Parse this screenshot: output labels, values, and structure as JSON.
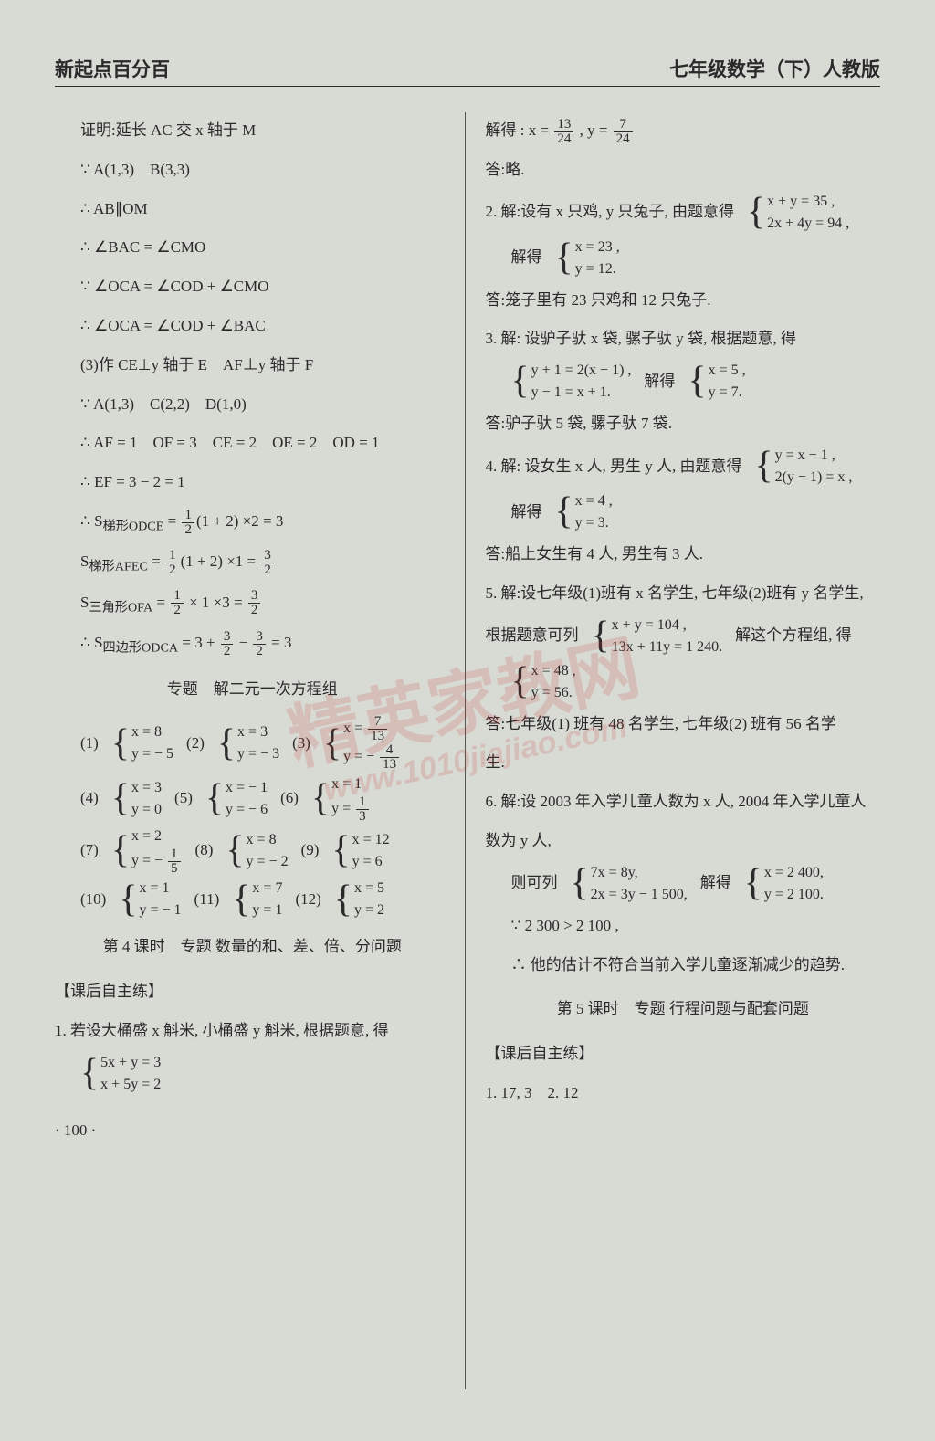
{
  "header": {
    "left": "新起点百分百",
    "right": "七年级数学（下）人教版"
  },
  "watermark": {
    "main": "精英家教网",
    "sub": "www.1010jiajiao.com"
  },
  "page_number": "· 100 ·",
  "left_col": {
    "l01": "证明:延长 AC 交 x 轴于 M",
    "l02": "∵ A(1,3)　B(3,3)",
    "l03": "∴ AB∥OM",
    "l04": "∴ ∠BAC = ∠CMO",
    "l05": "∵ ∠OCA = ∠COD + ∠CMO",
    "l06": "∴ ∠OCA = ∠COD + ∠BAC",
    "l07": "(3)作 CE⊥y 轴于 E　AF⊥y 轴于 F",
    "l08": "∵ A(1,3)　C(2,2)　D(1,0)",
    "l09": "∴ AF = 1　OF = 3　CE = 2　OE = 2　OD = 1",
    "l10": "∴ EF = 3 − 2 = 1",
    "l11a": "∴ S",
    "l11b": "梯形ODCE",
    "l11c": " = ",
    "l11n": "1",
    "l11d": "2",
    "l11e": "(1 + 2) ×2 = 3",
    "l12a": "S",
    "l12b": "梯形AFEC",
    "l12c": " = ",
    "l12n": "1",
    "l12d": "2",
    "l12e": "(1 + 2) ×1 = ",
    "l12n2": "3",
    "l12d2": "2",
    "l13a": "S",
    "l13b": "三角形OFA",
    "l13c": " = ",
    "l13n": "1",
    "l13d": "2",
    "l13e": " × 1 ×3 = ",
    "l13n2": "3",
    "l13d2": "2",
    "l14a": "∴ S",
    "l14b": "四边形ODCA",
    "l14c": " = 3 + ",
    "l14n": "3",
    "l14d": "2",
    "l14e": " − ",
    "l14n2": "3",
    "l14d2": "2",
    "l14f": " = 3",
    "section1": "专题　解二元一次方程组",
    "p1_label": "(1)",
    "p1a": "x = 8",
    "p1b": "y = − 5",
    "p2_label": "(2)",
    "p2a": "x = 3",
    "p2b": "y = − 3",
    "p3_label": "(3)",
    "p3a_pre": "x = ",
    "p3a_n": "7",
    "p3a_d": "13",
    "p3b_pre": "y = − ",
    "p3b_n": "4",
    "p3b_d": "13",
    "p4_label": "(4)",
    "p4a": "x = 3",
    "p4b": "y = 0",
    "p5_label": "(5)",
    "p5a": "x = − 1",
    "p5b": "y = − 6",
    "p6_label": "(6)",
    "p6a": "x = 1",
    "p6b_pre": "y = ",
    "p6b_n": "1",
    "p6b_d": "3",
    "p7_label": "(7)",
    "p7a": "x = 2",
    "p7b_pre": "y = − ",
    "p7b_n": "1",
    "p7b_d": "5",
    "p8_label": "(8)",
    "p8a": "x = 8",
    "p8b": "y = − 2",
    "p9_label": "(9)",
    "p9a": "x = 12",
    "p9b": "y = 6",
    "p10_label": "(10)",
    "p10a": "x = 1",
    "p10b": "y = − 1",
    "p11_label": "(11)",
    "p11a": "x = 7",
    "p11b": "y = 1",
    "p12_label": "(12)",
    "p12a": "x = 5",
    "p12b": "y = 2",
    "section2": "第 4 课时　专题 数量的和、差、倍、分问题",
    "sub1": "【课后自主练】",
    "q1": "1. 若设大桶盛 x 斛米, 小桶盛 y 斛米, 根据题意, 得",
    "q1a": "5x + y = 3",
    "q1b": "x + 5y = 2"
  },
  "right_col": {
    "r01a": "解得 : x = ",
    "r01n": "13",
    "r01d": "24",
    "r01b": " , y = ",
    "r01n2": "7",
    "r01d2": "24",
    "r02": "答:略.",
    "r03a": "2. 解:设有 x 只鸡, y 只兔子, 由题意得",
    "r03b": "x + y = 35 ,",
    "r03c": "2x + 4y = 94 ,",
    "r04a": "解得",
    "r04b": "x = 23 ,",
    "r04c": "y = 12.",
    "r05": "答:笼子里有 23 只鸡和 12 只兔子.",
    "r06": "3. 解: 设驴子驮 x 袋, 骡子驮 y 袋, 根据题意, 得",
    "r06b": "y + 1 = 2(x − 1) ,",
    "r06c": "y − 1 = x + 1.",
    "r06d": "解得",
    "r06e": "x = 5 ,",
    "r06f": "y = 7.",
    "r07": "答:驴子驮 5 袋, 骡子驮 7 袋.",
    "r08a": "4. 解: 设女生 x 人, 男生 y 人, 由题意得",
    "r08b": "y = x − 1 ,",
    "r08c": "2(y − 1) = x ,",
    "r09a": "解得",
    "r09b": "x = 4 ,",
    "r09c": "y = 3.",
    "r10": "答:船上女生有 4 人, 男生有 3 人.",
    "r11": "5. 解:设七年级(1)班有 x 名学生, 七年级(2)班有 y 名学生,",
    "r12a": "根据题意可列",
    "r12b": "x + y = 104 ,",
    "r12c": "13x + 11y = 1 240.",
    "r12d": "解这个方程组, 得",
    "r13a": "x = 48 ,",
    "r13b": "y = 56.",
    "r14": "答:七年级(1) 班有 48 名学生, 七年级(2) 班有 56 名学",
    "r14b": "生.",
    "r15": "6. 解:设 2003 年入学儿童人数为 x 人, 2004 年入学儿童人",
    "r15b": "数为 y 人,",
    "r16a": "则可列",
    "r16b": "7x = 8y,",
    "r16c": "2x = 3y − 1 500,",
    "r16d": "解得",
    "r16e": "x = 2 400,",
    "r16f": "y = 2 100.",
    "r17": "∵ 2 300 > 2 100 ,",
    "r18": "∴ 他的估计不符合当前入学儿童逐渐减少的趋势.",
    "section3": "第 5 课时　专题 行程问题与配套问题",
    "sub2": "【课后自主练】",
    "r19": "1. 17, 3　2. 12"
  }
}
